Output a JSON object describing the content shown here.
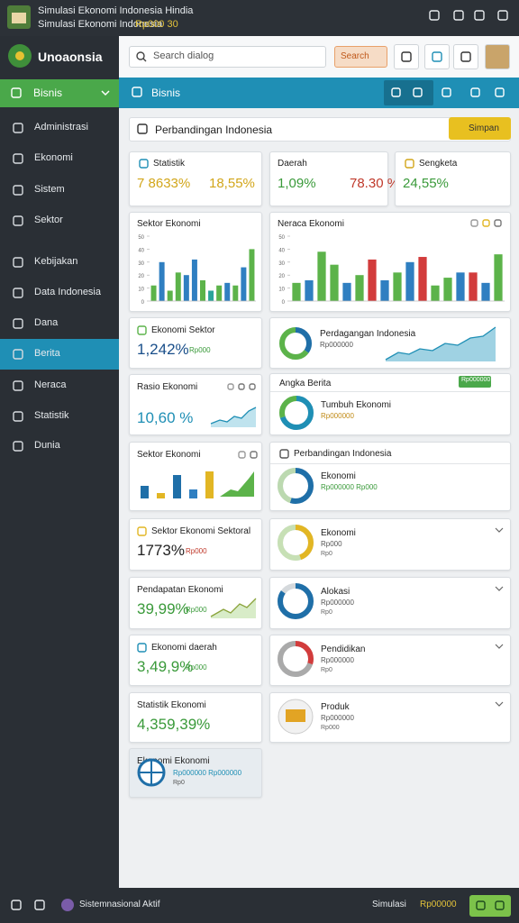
{
  "status_bar": {
    "title": "Simulasi Ekonomi Indonesia Hindia",
    "subtitle": "Simulasi Ekonomi Indonesia",
    "subtitle_tag": "Rp000 30"
  },
  "sidebar": {
    "brand": "Unoaonsia",
    "section": "Bisnis",
    "items": [
      "Administrasi",
      "Ekonomi",
      "Sistem",
      "Sektor",
      "Kebijakan",
      "Data Indonesia",
      "Dana",
      "Berita",
      "Neraca",
      "Statistik",
      "Dunia"
    ]
  },
  "header": {
    "search_placeholder": "Search dialog",
    "search_button": "Search"
  },
  "toolbar": {
    "title": "Bisnis"
  },
  "page": {
    "title": "Perbandingan Indonesia",
    "save_button": "Simpan"
  },
  "stats": [
    {
      "label": "Statistik",
      "values": [
        "7 8633%",
        "18,55%"
      ]
    },
    {
      "label": "Daerah",
      "values": [
        "1,09%",
        "78.30 %"
      ]
    },
    {
      "label": "Sengketa",
      "values": [
        "24,55%"
      ]
    }
  ],
  "bar_charts": [
    {
      "title": "Sektor Ekonomi",
      "ylim": [
        0,
        50
      ],
      "yticks": [
        0,
        10,
        20,
        30,
        40,
        50
      ],
      "values": [
        12,
        30,
        8,
        22,
        20,
        32,
        16,
        8,
        12,
        14,
        12,
        26,
        40
      ],
      "colors": [
        "#5cb34a",
        "#2f7fc1",
        "#5cb34a",
        "#5cb34a",
        "#2f7fc1",
        "#2f7fc1",
        "#5cb34a",
        "#2aa39a",
        "#5cb34a",
        "#2f7fc1",
        "#5cb34a",
        "#2f7fc1",
        "#5cb34a"
      ]
    },
    {
      "title": "Neraca Ekonomi",
      "ylim": [
        0,
        50
      ],
      "yticks": [
        0,
        10,
        20,
        30,
        40,
        50
      ],
      "values": [
        14,
        16,
        38,
        28,
        14,
        20,
        32,
        16,
        22,
        30,
        34,
        12,
        18,
        22,
        22,
        14,
        36
      ],
      "colors": [
        "#5cb34a",
        "#2f7fc1",
        "#5cb34a",
        "#5cb34a",
        "#2f7fc1",
        "#5cb34a",
        "#d23c3c",
        "#2f7fc1",
        "#5cb34a",
        "#2f7fc1",
        "#d23c3c",
        "#5cb34a",
        "#5cb34a",
        "#2f7fc1",
        "#d23c3c",
        "#2f7fc1",
        "#5cb34a"
      ]
    }
  ],
  "cards_left": [
    {
      "title": "Ekonomi Sektor",
      "value": "1,242%",
      "note": "Rp000"
    },
    {
      "title": "Rasio Ekonomi",
      "value": "10,60 %"
    },
    {
      "title": "Sektor Ekonomi"
    },
    {
      "title": "Sektor Ekonomi Sektoral",
      "value": "1773%",
      "note": "Rp000"
    },
    {
      "title": "Pendapatan Ekonomi",
      "value": "39,99%",
      "note": "Rp000"
    },
    {
      "title": "Ekonomi daerah",
      "value": "3,49,9%",
      "note": "Rp000"
    },
    {
      "title": "Statistik Ekonomi",
      "value": "4,359,39%"
    },
    {
      "title": "Ekonomi Ekonomi",
      "value": "Rp000000 Rp000000",
      "note": "Rp0"
    }
  ],
  "cards_right": [
    {
      "title": "Perdagangan Indonesia",
      "note": "Rp000000"
    },
    {
      "title": "Angka Berita",
      "tag": "Rp000000",
      "item": "Tumbuh Ekonomi",
      "note": "Rp000000"
    },
    {
      "title": "Perbandingan Indonesia",
      "item": "Ekonomi",
      "note": "Rp000000 Rp000"
    },
    {
      "item": "Ekonomi",
      "note": "Rp000",
      "sub": "Rp0"
    },
    {
      "item": "Alokasi",
      "note": "Rp000000",
      "sub": "Rp0"
    },
    {
      "item": "Pendidikan",
      "note": "Rp000000",
      "sub": "Rp0"
    },
    {
      "item": "Produk",
      "note": "Rp000000",
      "sub": "Rp000"
    }
  ],
  "footer": {
    "status": "Sistemnasional Aktif",
    "label": "Simulasi",
    "amount": "Rp00000"
  }
}
